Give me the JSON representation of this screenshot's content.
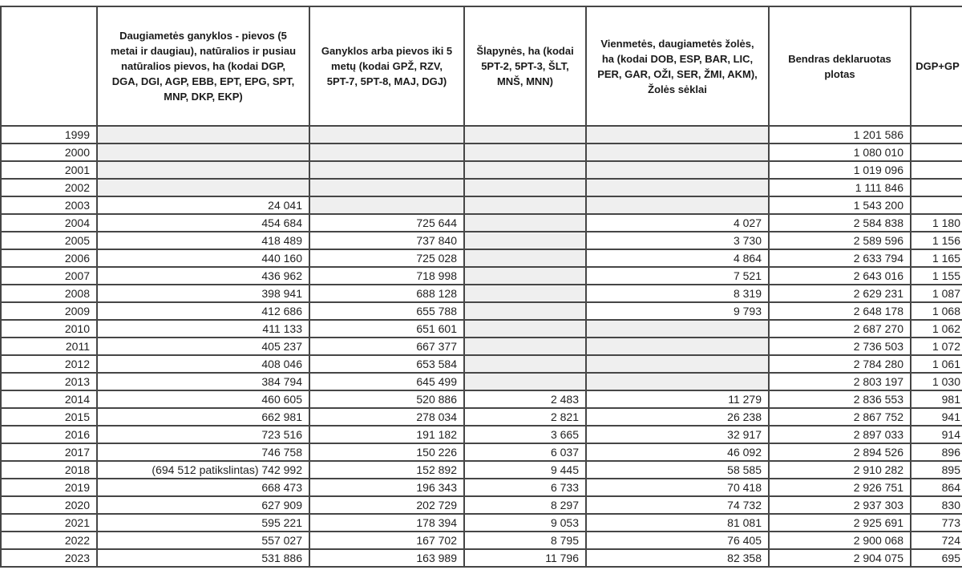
{
  "colors": {
    "cell_shade": "#efefef",
    "border": "#464646",
    "text": "#1f1f1f"
  },
  "table": {
    "columns": [
      {
        "key": "year",
        "label": ""
      },
      {
        "key": "daugiametes",
        "label": "Daugiametės ganyklos - pievos (5 metai ir daugiau), natūralios ir pusiau natūralios pievos, ha (kodai DGP, DGA, DGI, AGP, EBB, EPT, EPG, SPT, MNP, DKP, EKP)"
      },
      {
        "key": "ganyklos",
        "label": "Ganyklos arba pievos iki 5 metų (kodai GPŽ, RZV, 5PT-7, 5PT-8, MAJ, DGJ)"
      },
      {
        "key": "slapynes",
        "label": "Šlapynės, ha (kodai 5PT-2, 5PT-3, ŠLT, MNŠ, MNN)"
      },
      {
        "key": "vienmetes",
        "label": "Vienmetės, daugiametės žolės, ha (kodai DOB, ESP, BAR, LIC, PER, GAR, OŽI, SER, ŽMI, AKM), Žolės sėklai"
      },
      {
        "key": "bendras",
        "label": "Bendras deklaruotas plotas"
      },
      {
        "key": "dgp_gp",
        "label": "DGP+GP"
      }
    ],
    "rows": [
      {
        "year": "1999",
        "cells": [
          "",
          "",
          "",
          "",
          "1 201 586",
          ""
        ],
        "shaded": [
          true,
          true,
          true,
          true,
          false,
          false
        ]
      },
      {
        "year": "2000",
        "cells": [
          "",
          "",
          "",
          "",
          "1 080 010",
          ""
        ],
        "shaded": [
          true,
          true,
          true,
          true,
          false,
          false
        ]
      },
      {
        "year": "2001",
        "cells": [
          "",
          "",
          "",
          "",
          "1 019 096",
          ""
        ],
        "shaded": [
          true,
          true,
          true,
          true,
          false,
          false
        ]
      },
      {
        "year": "2002",
        "cells": [
          "",
          "",
          "",
          "",
          "1 111 846",
          ""
        ],
        "shaded": [
          true,
          true,
          true,
          true,
          false,
          false
        ]
      },
      {
        "year": "2003",
        "cells": [
          "24 041",
          "",
          "",
          "",
          "1 543 200",
          ""
        ],
        "shaded": [
          false,
          true,
          true,
          true,
          false,
          false
        ]
      },
      {
        "year": "2004",
        "cells": [
          "454 684",
          "725 644",
          "",
          "4 027",
          "2 584 838",
          "1 180"
        ],
        "shaded": [
          false,
          false,
          true,
          false,
          false,
          false
        ]
      },
      {
        "year": "2005",
        "cells": [
          "418 489",
          "737 840",
          "",
          "3 730",
          "2 589 596",
          "1 156"
        ],
        "shaded": [
          false,
          false,
          true,
          false,
          false,
          false
        ]
      },
      {
        "year": "2006",
        "cells": [
          "440 160",
          "725 028",
          "",
          "4 864",
          "2 633 794",
          "1 165"
        ],
        "shaded": [
          false,
          false,
          true,
          false,
          false,
          false
        ]
      },
      {
        "year": "2007",
        "cells": [
          "436 962",
          "718 998",
          "",
          "7 521",
          "2 643 016",
          "1 155"
        ],
        "shaded": [
          false,
          false,
          true,
          false,
          false,
          false
        ]
      },
      {
        "year": "2008",
        "cells": [
          "398 941",
          "688 128",
          "",
          "8 319",
          "2 629 231",
          "1 087"
        ],
        "shaded": [
          false,
          false,
          true,
          false,
          false,
          false
        ]
      },
      {
        "year": "2009",
        "cells": [
          "412 686",
          "655 788",
          "",
          "9 793",
          "2 648 178",
          "1 068"
        ],
        "shaded": [
          false,
          false,
          true,
          false,
          false,
          false
        ]
      },
      {
        "year": "2010",
        "cells": [
          "411 133",
          "651 601",
          "",
          "",
          "2 687 270",
          "1 062"
        ],
        "shaded": [
          false,
          false,
          true,
          true,
          false,
          false
        ]
      },
      {
        "year": "2011",
        "cells": [
          "405 237",
          "667 377",
          "",
          "",
          "2 736 503",
          "1 072"
        ],
        "shaded": [
          false,
          false,
          true,
          true,
          false,
          false
        ]
      },
      {
        "year": "2012",
        "cells": [
          "408 046",
          "653 584",
          "",
          "",
          "2 784 280",
          "1 061"
        ],
        "shaded": [
          false,
          false,
          true,
          true,
          false,
          false
        ]
      },
      {
        "year": "2013",
        "cells": [
          "384 794",
          "645 499",
          "",
          "",
          "2 803 197",
          "1 030"
        ],
        "shaded": [
          false,
          false,
          true,
          true,
          false,
          false
        ]
      },
      {
        "year": "2014",
        "cells": [
          "460 605",
          "520 886",
          "2 483",
          "11 279",
          "2 836 553",
          "981"
        ],
        "shaded": [
          false,
          false,
          false,
          false,
          false,
          false
        ]
      },
      {
        "year": "2015",
        "cells": [
          "662 981",
          "278 034",
          "2 821",
          "26 238",
          "2 867 752",
          "941"
        ],
        "shaded": [
          false,
          false,
          false,
          false,
          false,
          false
        ]
      },
      {
        "year": "2016",
        "cells": [
          "723 516",
          "191 182",
          "3 665",
          "32 917",
          "2 897 033",
          "914"
        ],
        "shaded": [
          false,
          false,
          false,
          false,
          false,
          false
        ]
      },
      {
        "year": "2017",
        "cells": [
          "746 758",
          "150 226",
          "6 037",
          "46 092",
          "2 894 526",
          "896"
        ],
        "shaded": [
          false,
          false,
          false,
          false,
          false,
          false
        ]
      },
      {
        "year": "2018",
        "cells": [
          "(694 512 patikslintas) 742 992",
          "152 892",
          "9 445",
          "58 585",
          "2 910 282",
          "895"
        ],
        "shaded": [
          false,
          false,
          false,
          false,
          false,
          false
        ]
      },
      {
        "year": "2019",
        "cells": [
          "668 473",
          "196 343",
          "6 733",
          "70 418",
          "2 926 751",
          "864"
        ],
        "shaded": [
          false,
          false,
          false,
          false,
          false,
          false
        ]
      },
      {
        "year": "2020",
        "cells": [
          "627 909",
          "202 729",
          "8 297",
          "74 732",
          "2 937 303",
          "830"
        ],
        "shaded": [
          false,
          false,
          false,
          false,
          false,
          false
        ]
      },
      {
        "year": "2021",
        "cells": [
          "595 221",
          "178 394",
          "9 053",
          "81 081",
          "2 925 691",
          "773"
        ],
        "shaded": [
          false,
          false,
          false,
          false,
          false,
          false
        ]
      },
      {
        "year": "2022",
        "cells": [
          "557 027",
          "167 702",
          "8 795",
          "76 405",
          "2 900 068",
          "724"
        ],
        "shaded": [
          false,
          false,
          false,
          false,
          false,
          false
        ]
      },
      {
        "year": "2023",
        "cells": [
          "531 886",
          "163 989",
          "11 796",
          "82 358",
          "2 904 075",
          "695"
        ],
        "shaded": [
          false,
          false,
          false,
          false,
          false,
          false
        ]
      }
    ]
  }
}
